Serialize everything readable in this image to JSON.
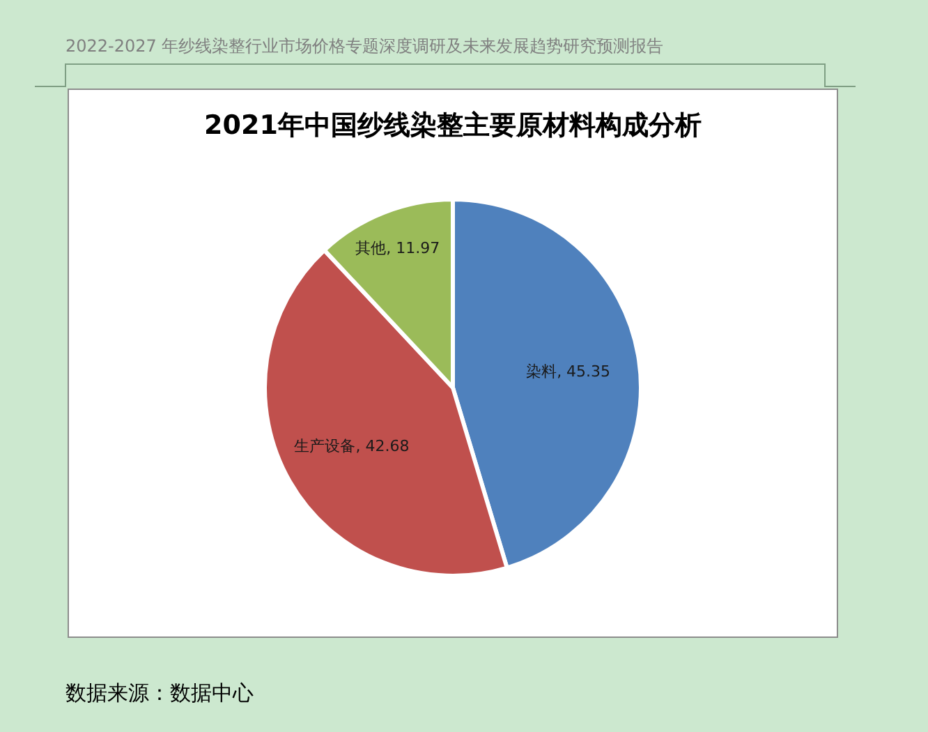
{
  "chart_data": {
    "type": "pie",
    "title": "2021年中国纱线染整主要原材料构成分析",
    "categories": [
      "染料",
      "生产设备",
      "其他"
    ],
    "values": [
      45.35,
      42.68,
      11.97
    ],
    "colors": [
      "#4f81bd",
      "#c0504d",
      "#9bbb59"
    ],
    "value_labels": [
      ", 45.35",
      ", 42.68",
      ", 11.97"
    ],
    "legend": false,
    "annotations": [
      "2022-2027 年纱线染整行业市场价格专题深度调研及未来发展趋势研究预测报告",
      "数据来源：数据中心"
    ]
  }
}
